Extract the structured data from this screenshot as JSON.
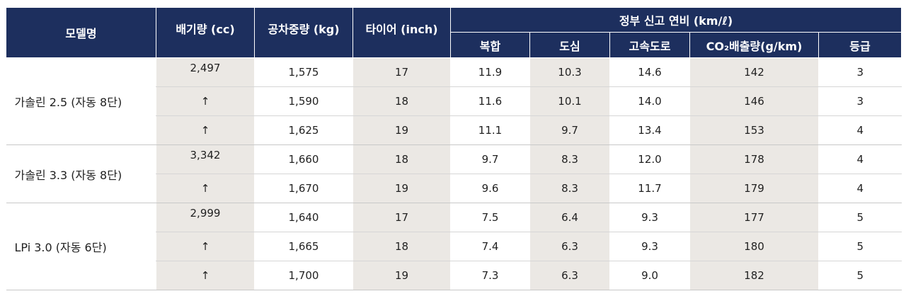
{
  "table": {
    "headers": {
      "model": "모델명",
      "displacement": "배기량 (cc)",
      "curb_weight": "공차중량 (kg)",
      "tire": "타이어 (inch)",
      "fuel_group": "정부 신고 연비 (km/ℓ)",
      "combined": "복합",
      "city": "도심",
      "highway": "고속도로",
      "co2": "CO₂배출량(g/km)",
      "grade": "등급"
    },
    "groups": [
      {
        "model": "가솔린 2.5 (자동 8단)",
        "rows": [
          {
            "displacement": "2,497",
            "weight": "1,575",
            "tire": "17",
            "combined": "11.9",
            "city": "10.3",
            "highway": "14.6",
            "co2": "142",
            "grade": "3"
          },
          {
            "displacement": "↑",
            "weight": "1,590",
            "tire": "18",
            "combined": "11.6",
            "city": "10.1",
            "highway": "14.0",
            "co2": "146",
            "grade": "3"
          },
          {
            "displacement": "↑",
            "weight": "1,625",
            "tire": "19",
            "combined": "11.1",
            "city": "9.7",
            "highway": "13.4",
            "co2": "153",
            "grade": "4"
          }
        ]
      },
      {
        "model": "가솔린 3.3 (자동 8단)",
        "rows": [
          {
            "displacement": "3,342",
            "weight": "1,660",
            "tire": "18",
            "combined": "9.7",
            "city": "8.3",
            "highway": "12.0",
            "co2": "178",
            "grade": "4"
          },
          {
            "displacement": "↑",
            "weight": "1,670",
            "tire": "19",
            "combined": "9.6",
            "city": "8.3",
            "highway": "11.7",
            "co2": "179",
            "grade": "4"
          }
        ]
      },
      {
        "model": "LPi 3.0 (자동 6단)",
        "rows": [
          {
            "displacement": "2,999",
            "weight": "1,640",
            "tire": "17",
            "combined": "7.5",
            "city": "6.4",
            "highway": "9.3",
            "co2": "177",
            "grade": "5"
          },
          {
            "displacement": "↑",
            "weight": "1,665",
            "tire": "18",
            "combined": "7.4",
            "city": "6.3",
            "highway": "9.3",
            "co2": "180",
            "grade": "5"
          },
          {
            "displacement": "↑",
            "weight": "1,700",
            "tire": "19",
            "combined": "7.3",
            "city": "6.3",
            "highway": "9.0",
            "co2": "182",
            "grade": "5"
          }
        ]
      }
    ]
  },
  "colors": {
    "header_bg": "#1d2f5e",
    "shade_bg": "#ebe8e4"
  }
}
